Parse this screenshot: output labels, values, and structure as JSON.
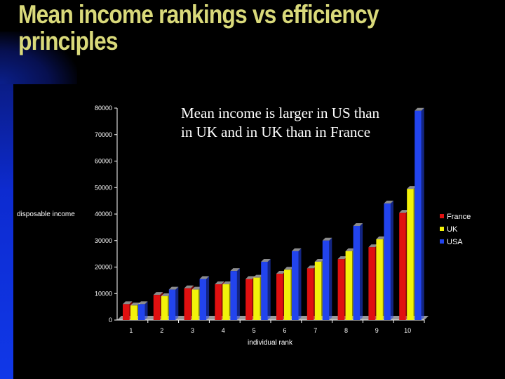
{
  "slide": {
    "title": "Mean income rankings vs efficiency\nprinciples",
    "annotation": "Mean income is larger in US than in UK and in UK than in France"
  },
  "colors": {
    "background": "#000000",
    "title": "#d9d97a",
    "france": "#e01010",
    "uk": "#f2f20a",
    "usa": "#2244ee"
  },
  "chart_data": {
    "type": "bar",
    "xlabel": "individual rank",
    "ylabel": "disposable income",
    "ylim": [
      0,
      80000
    ],
    "yticks": [
      0,
      10000,
      20000,
      30000,
      40000,
      50000,
      60000,
      70000,
      80000
    ],
    "categories": [
      "1",
      "2",
      "3",
      "4",
      "5",
      "6",
      "7",
      "8",
      "9",
      "10"
    ],
    "legend_position": "right",
    "grid": false,
    "series": [
      {
        "name": "France",
        "color": "#e01010",
        "values": [
          6000,
          9500,
          12000,
          13500,
          15500,
          17500,
          19500,
          23000,
          27500,
          40500
        ]
      },
      {
        "name": "UK",
        "color": "#f2f20a",
        "values": [
          5500,
          9000,
          11500,
          13500,
          16000,
          19000,
          22000,
          26000,
          30500,
          49500
        ]
      },
      {
        "name": "USA",
        "color": "#2244ee",
        "values": [
          6000,
          11500,
          15500,
          18500,
          22000,
          26000,
          30000,
          35500,
          44000,
          79000
        ]
      }
    ]
  }
}
